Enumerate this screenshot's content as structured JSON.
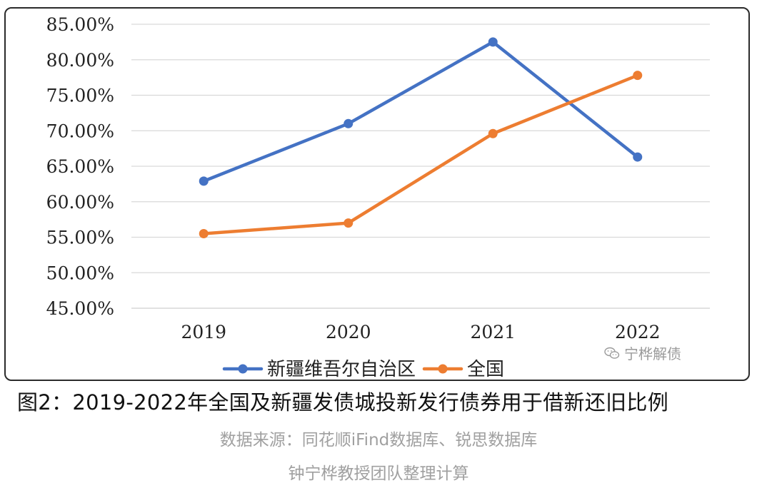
{
  "chart_data": {
    "type": "line",
    "categories": [
      "2019",
      "2020",
      "2021",
      "2022"
    ],
    "series": [
      {
        "name": "新疆维吾尔自治区",
        "color": "#4472c4",
        "values": [
          62.9,
          71.0,
          82.5,
          66.3
        ]
      },
      {
        "name": "全国",
        "color": "#ed7d31",
        "values": [
          55.5,
          57.0,
          69.6,
          77.8
        ]
      }
    ],
    "ylim": [
      45,
      85
    ],
    "ytick_values": [
      45,
      50,
      55,
      60,
      65,
      70,
      75,
      80,
      85
    ],
    "ytick_labels": [
      "45.00%",
      "50.00%",
      "55.00%",
      "60.00%",
      "65.00%",
      "70.00%",
      "75.00%",
      "80.00%",
      "85.00%"
    ],
    "grid": true,
    "legend_position": "bottom"
  },
  "watermark": {
    "text": "宁桦解债",
    "icon": "wechat-icon"
  },
  "caption": "图2：2019-2022年全国及新疆发债城投新发行债券用于借新还旧比例",
  "source": {
    "line1": "数据来源：同花顺iFind数据库、锐思数据库",
    "line2": "钟宁桦教授团队整理计算"
  }
}
